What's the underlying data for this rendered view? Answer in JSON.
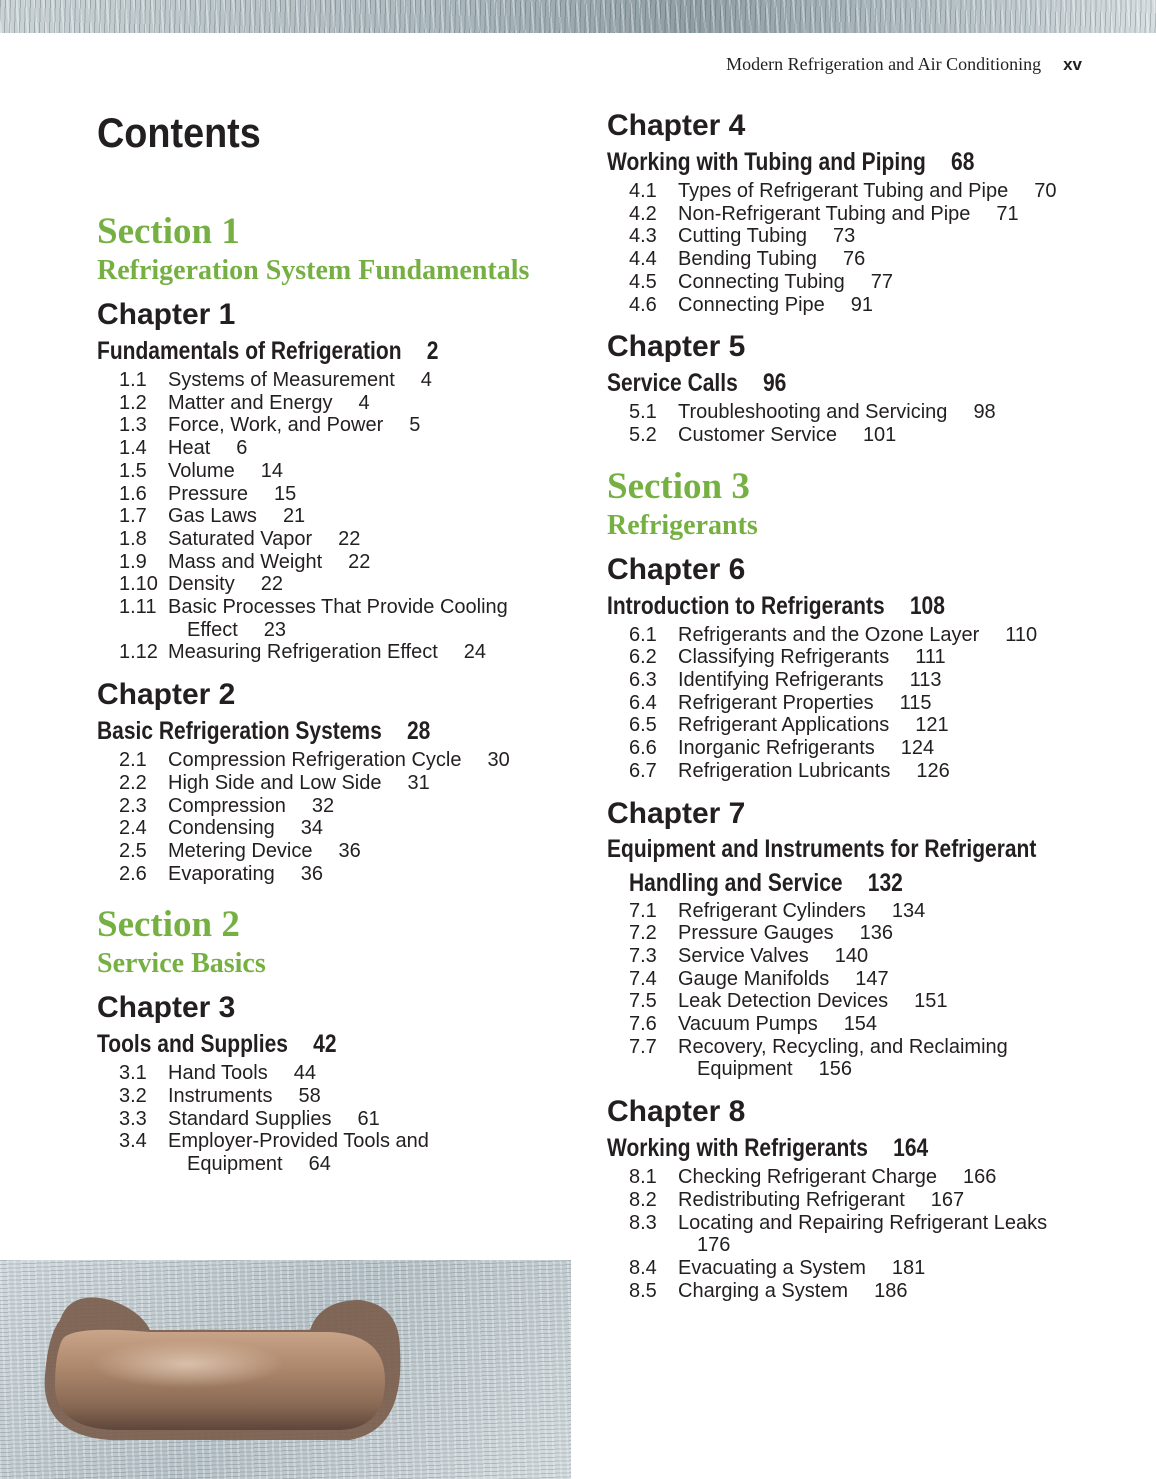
{
  "running_head": {
    "book_title": "Modern Refrigeration and Air Conditioning",
    "page_number": "xv"
  },
  "contents_title": "Contents",
  "colors": {
    "section_green": "#76b043",
    "text": "#231f20"
  },
  "left_column": [
    {
      "type": "section",
      "label": "Section 1",
      "subtitle": "Refrigeration System Fundamentals"
    },
    {
      "type": "chapter",
      "label": "Chapter 1",
      "title": "Fundamentals of Refrigeration",
      "page": "2",
      "entries": [
        {
          "num": "1.1",
          "title": "Systems of Measurement",
          "page": "4"
        },
        {
          "num": "1.2",
          "title": "Matter and Energy",
          "page": "4"
        },
        {
          "num": "1.3",
          "title": "Force, Work, and Power",
          "page": "5"
        },
        {
          "num": "1.4",
          "title": "Heat",
          "page": "6"
        },
        {
          "num": "1.5",
          "title": "Volume",
          "page": "14"
        },
        {
          "num": "1.6",
          "title": "Pressure",
          "page": "15"
        },
        {
          "num": "1.7",
          "title": "Gas Laws",
          "page": "21"
        },
        {
          "num": "1.8",
          "title": "Saturated Vapor",
          "page": "22"
        },
        {
          "num": "1.9",
          "title": "Mass and Weight",
          "page": "22"
        },
        {
          "num": "1.10",
          "title": "Density",
          "page": "22"
        },
        {
          "num": "1.11",
          "title": "Basic Processes That Provide Cooling",
          "cont": "Effect",
          "page": "23"
        },
        {
          "num": "1.12",
          "title": "Measuring Refrigeration Effect",
          "page": "24"
        }
      ]
    },
    {
      "type": "chapter",
      "label": "Chapter 2",
      "title": "Basic Refrigeration Systems",
      "page": "28",
      "entries": [
        {
          "num": "2.1",
          "title": "Compression Refrigeration Cycle",
          "page": "30"
        },
        {
          "num": "2.2",
          "title": "High Side and Low Side",
          "page": "31"
        },
        {
          "num": "2.3",
          "title": "Compression",
          "page": "32"
        },
        {
          "num": "2.4",
          "title": "Condensing",
          "page": "34"
        },
        {
          "num": "2.5",
          "title": "Metering Device",
          "page": "36"
        },
        {
          "num": "2.6",
          "title": "Evaporating",
          "page": "36"
        }
      ]
    },
    {
      "type": "section",
      "label": "Section 2",
      "subtitle": "Service Basics"
    },
    {
      "type": "chapter",
      "label": "Chapter 3",
      "title": "Tools and Supplies",
      "page": "42",
      "entries": [
        {
          "num": "3.1",
          "title": "Hand Tools",
          "page": "44"
        },
        {
          "num": "3.2",
          "title": "Instruments",
          "page": "58"
        },
        {
          "num": "3.3",
          "title": "Standard Supplies",
          "page": "61"
        },
        {
          "num": "3.4",
          "title": "Employer-Provided Tools and",
          "cont": "Equipment",
          "page": "64"
        }
      ]
    }
  ],
  "right_column": [
    {
      "type": "chapter",
      "label": "Chapter 4",
      "title": "Working with Tubing and Piping",
      "page": "68",
      "entries": [
        {
          "num": "4.1",
          "title": "Types of Refrigerant Tubing and Pipe",
          "page": "70"
        },
        {
          "num": "4.2",
          "title": "Non-Refrigerant Tubing and Pipe",
          "page": "71"
        },
        {
          "num": "4.3",
          "title": "Cutting Tubing",
          "page": "73"
        },
        {
          "num": "4.4",
          "title": "Bending Tubing",
          "page": "76"
        },
        {
          "num": "4.5",
          "title": "Connecting Tubing",
          "page": "77"
        },
        {
          "num": "4.6",
          "title": "Connecting Pipe",
          "page": "91"
        }
      ]
    },
    {
      "type": "chapter",
      "label": "Chapter 5",
      "title": "Service Calls",
      "page": "96",
      "entries": [
        {
          "num": "5.1",
          "title": "Troubleshooting and Servicing",
          "page": "98"
        },
        {
          "num": "5.2",
          "title": "Customer Service",
          "page": "101"
        }
      ]
    },
    {
      "type": "section",
      "label": "Section 3",
      "subtitle": "Refrigerants"
    },
    {
      "type": "chapter",
      "label": "Chapter 6",
      "title": "Introduction to Refrigerants",
      "page": "108",
      "entries": [
        {
          "num": "6.1",
          "title": "Refrigerants and the Ozone Layer",
          "page": "110"
        },
        {
          "num": "6.2",
          "title": "Classifying Refrigerants",
          "page": "111"
        },
        {
          "num": "6.3",
          "title": "Identifying Refrigerants",
          "page": "113"
        },
        {
          "num": "6.4",
          "title": "Refrigerant Properties",
          "page": "115"
        },
        {
          "num": "6.5",
          "title": "Refrigerant Applications",
          "page": "121"
        },
        {
          "num": "6.6",
          "title": "Inorganic Refrigerants",
          "page": "124"
        },
        {
          "num": "6.7",
          "title": "Refrigeration Lubricants",
          "page": "126"
        }
      ]
    },
    {
      "type": "chapter",
      "label": "Chapter 7",
      "title": "Equipment and Instruments for Refrigerant",
      "title_cont": "Handling and Service",
      "page": "132",
      "entries": [
        {
          "num": "7.1",
          "title": "Refrigerant Cylinders",
          "page": "134"
        },
        {
          "num": "7.2",
          "title": "Pressure Gauges",
          "page": "136"
        },
        {
          "num": "7.3",
          "title": "Service Valves",
          "page": "140"
        },
        {
          "num": "7.4",
          "title": "Gauge Manifolds",
          "page": "147"
        },
        {
          "num": "7.5",
          "title": "Leak Detection Devices",
          "page": "151"
        },
        {
          "num": "7.6",
          "title": "Vacuum Pumps",
          "page": "154"
        },
        {
          "num": "7.7",
          "title": "Recovery, Recycling, and Reclaiming",
          "cont": "Equipment",
          "page": "156"
        }
      ]
    },
    {
      "type": "chapter",
      "label": "Chapter 8",
      "title": "Working with Refrigerants",
      "page": "164",
      "entries": [
        {
          "num": "8.1",
          "title": "Checking Refrigerant Charge",
          "page": "166"
        },
        {
          "num": "8.2",
          "title": "Redistributing Refrigerant",
          "page": "167"
        },
        {
          "num": "8.3",
          "title": "Locating and Repairing Refrigerant Leaks",
          "cont": "",
          "page": "176"
        },
        {
          "num": "8.4",
          "title": "Evacuating a System",
          "page": "181"
        },
        {
          "num": "8.5",
          "title": "Charging a System",
          "page": "186"
        }
      ]
    }
  ]
}
